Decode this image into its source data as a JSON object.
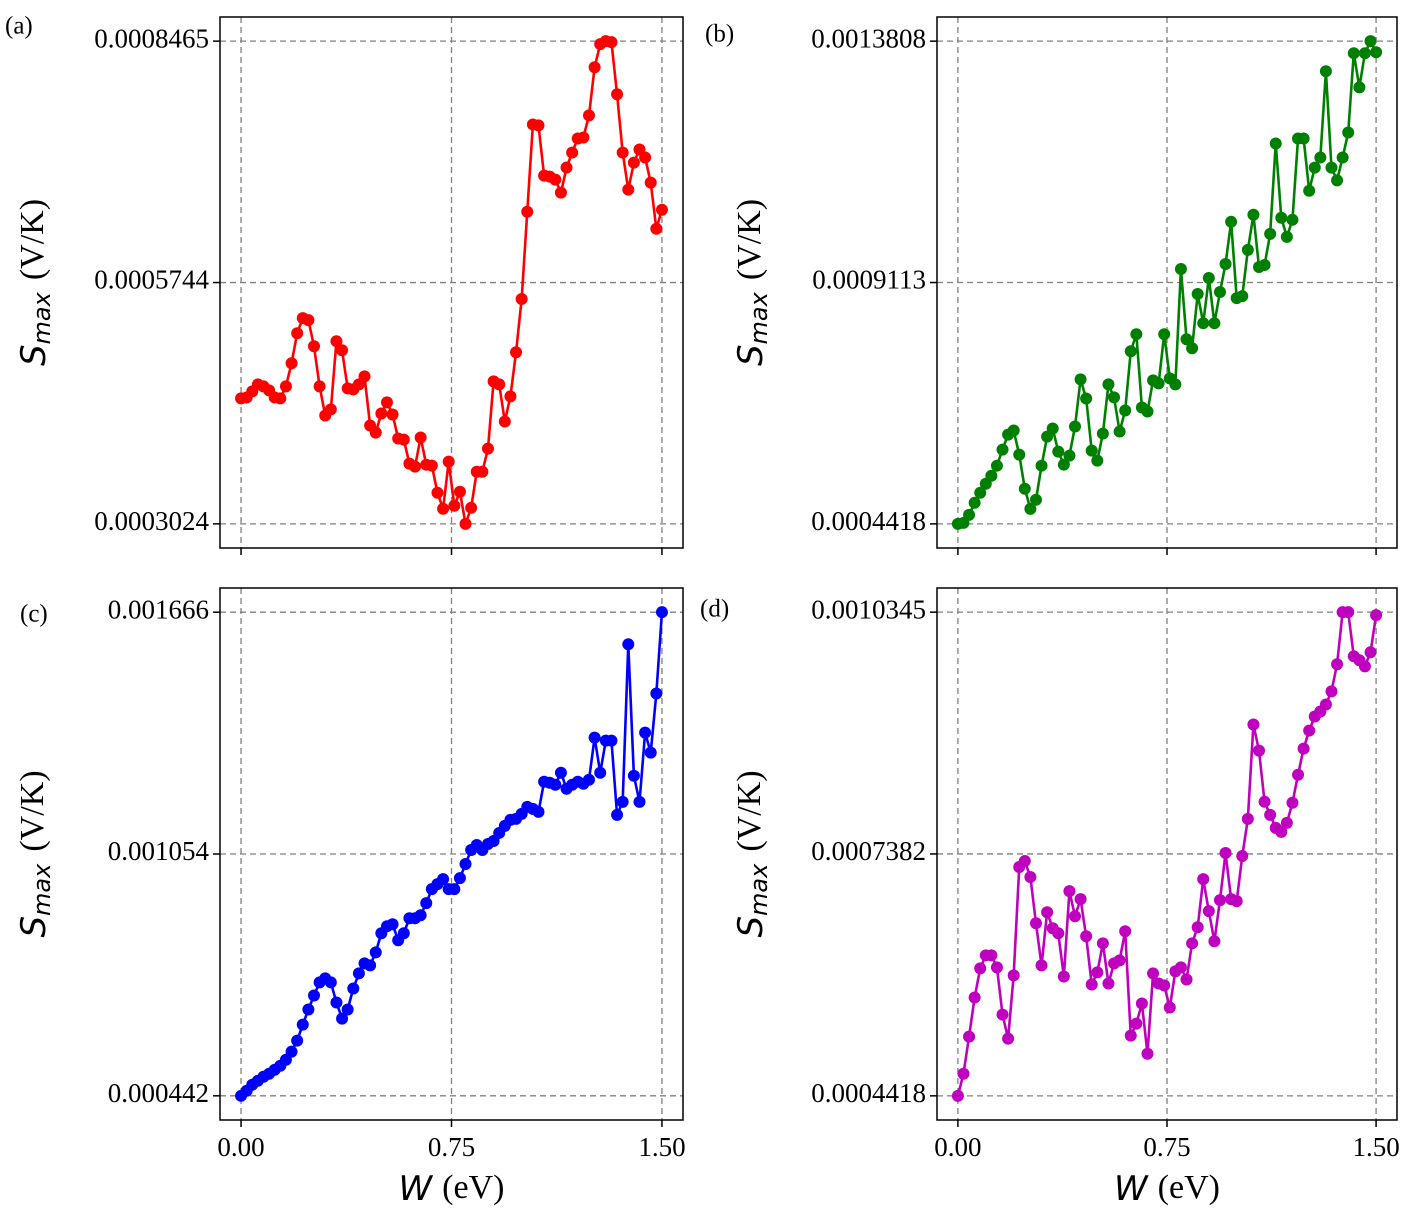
{
  "chart_data": [
    {
      "type": "line",
      "label": "(a)",
      "color": "#ff0000",
      "grid": true,
      "show_xtick_labels": false,
      "ylabel": {
        "symbol": "S",
        "subscript": "max",
        "unit": "(V/K)"
      },
      "xlim": [
        -0.075,
        1.575
      ],
      "xticks": [
        0,
        0.75,
        1.5
      ],
      "ylim": [
        0.0002752,
        0.0008737
      ],
      "yticks": [
        0.0003024,
        0.0005744,
        0.0008465
      ],
      "x": [
        0,
        0.02,
        0.04,
        0.06,
        0.08,
        0.1,
        0.12,
        0.14,
        0.16,
        0.18,
        0.2,
        0.22,
        0.24,
        0.26,
        0.28,
        0.3,
        0.32,
        0.34,
        0.36,
        0.38,
        0.4,
        0.42,
        0.44,
        0.46,
        0.48,
        0.5,
        0.52,
        0.54,
        0.56,
        0.58,
        0.6,
        0.62,
        0.64,
        0.66,
        0.68,
        0.7,
        0.72,
        0.74,
        0.76,
        0.78,
        0.8,
        0.82,
        0.84,
        0.86,
        0.88,
        0.9,
        0.92,
        0.94,
        0.96,
        0.98,
        1,
        1.02,
        1.04,
        1.06,
        1.08,
        1.1,
        1.12,
        1.14,
        1.16,
        1.18,
        1.2,
        1.22,
        1.24,
        1.26,
        1.28,
        1.3,
        1.32,
        1.34,
        1.36,
        1.38,
        1.4,
        1.42,
        1.44,
        1.46,
        1.48,
        1.5
      ],
      "values": [
        0.0004438,
        0.0004449,
        0.0004517,
        0.0004596,
        0.0004574,
        0.0004529,
        0.0004449,
        0.0004438,
        0.0004574,
        0.0004834,
        0.0005173,
        0.0005343,
        0.000532,
        0.0005026,
        0.0004574,
        0.0004246,
        0.0004314,
        0.0005083,
        0.0004981,
        0.0004551,
        0.000454,
        0.0004596,
        0.0004687,
        0.0004133,
        0.0004053,
        0.0004268,
        0.0004393,
        0.0004257,
        0.0003986,
        0.0003974,
        0.0003703,
        0.0003669,
        0.0003997,
        0.0003691,
        0.000368,
        0.0003375,
        0.0003194,
        0.0003725,
        0.0003228,
        0.0003386,
        0.0003024,
        0.0003205,
        0.0003612,
        0.0003612,
        0.0003872,
        0.000463,
        0.0004596,
        0.0004178,
        0.0004461,
        0.0004958,
        0.0005558,
        0.0006542,
        0.0007526,
        0.0007515,
        0.0006949,
        0.0006938,
        0.0006904,
        0.0006757,
        0.000704,
        0.0007209,
        0.0007368,
        0.0007379,
        0.0007628,
        0.0008171,
        0.0008431,
        0.0008465,
        0.0008454,
        0.0007866,
        0.0007209,
        0.0006791,
        0.0007096,
        0.0007243,
        0.0007153,
        0.000687,
        0.000635,
        0.0006565
      ]
    },
    {
      "type": "line",
      "label": "(b)",
      "color": "#008000",
      "grid": true,
      "show_xtick_labels": false,
      "ylabel": {
        "symbol": "S",
        "subscript": "max",
        "unit": "(V/K)"
      },
      "xlim": [
        -0.075,
        1.575
      ],
      "xticks": [
        0,
        0.75,
        1.5
      ],
      "ylim": [
        0.0003949,
        0.0014278
      ],
      "yticks": [
        0.0004418,
        0.0009113,
        0.0013808
      ],
      "x": [
        0,
        0.02,
        0.04,
        0.06,
        0.08,
        0.1,
        0.12,
        0.14,
        0.16,
        0.18,
        0.2,
        0.22,
        0.24,
        0.26,
        0.28,
        0.3,
        0.32,
        0.34,
        0.36,
        0.38,
        0.4,
        0.42,
        0.44,
        0.46,
        0.48,
        0.5,
        0.52,
        0.54,
        0.56,
        0.58,
        0.6,
        0.62,
        0.64,
        0.66,
        0.68,
        0.7,
        0.72,
        0.74,
        0.76,
        0.78,
        0.8,
        0.82,
        0.84,
        0.86,
        0.88,
        0.9,
        0.92,
        0.94,
        0.96,
        0.98,
        1,
        1.02,
        1.04,
        1.06,
        1.08,
        1.1,
        1.12,
        1.14,
        1.16,
        1.18,
        1.2,
        1.22,
        1.24,
        1.26,
        1.28,
        1.3,
        1.32,
        1.34,
        1.36,
        1.38,
        1.4,
        1.42,
        1.44,
        1.46,
        1.48,
        1.5
      ],
      "values": [
        0.0004418,
        0.0004438,
        0.0004594,
        0.0004828,
        0.0005023,
        0.0005199,
        0.0005355,
        0.000555,
        0.0005863,
        0.0006155,
        0.0006234,
        0.0005765,
        0.0005101,
        0.0004711,
        0.0004887,
        0.000555,
        0.0006116,
        0.0006273,
        0.0005824,
        0.000557,
        0.0005746,
        0.0006312,
        0.0007229,
        0.0006858,
        0.0005843,
        0.0005648,
        0.0006175,
        0.0007132,
        0.0006878,
        0.0006214,
        0.0006624,
        0.0007776,
        0.0008108,
        0.0006683,
        0.0006604,
        0.000721,
        0.0007151,
        0.0008108,
        0.0007249,
        0.0007132,
        0.0009377,
        0.000801,
        0.0007834,
        0.0008889,
        0.0008322,
        0.0009201,
        0.0008322,
        0.0008928,
        0.0009474,
        0.0010294,
        0.000881,
        0.0008849,
        0.0009748,
        0.0010431,
        0.0009416,
        0.0009455,
        0.001006,
        0.0011817,
        0.0010372,
        0.0010001,
        0.0010333,
        0.0011914,
        0.0011914,
        0.0010899,
        0.0011348,
        0.0011544,
        0.0013222,
        0.0011348,
        0.0011099,
        0.0011544,
        0.0012032,
        0.0013574,
        0.001291,
        0.0013574,
        0.0013808,
        0.0013593
      ]
    },
    {
      "type": "line",
      "label": "(c)",
      "color": "#0000ff",
      "grid": true,
      "show_xtick_labels": true,
      "ylabel": {
        "symbol": "S",
        "subscript": "max",
        "unit": "(V/K)"
      },
      "xlabel": {
        "symbol": "W",
        "unit": "(eV)"
      },
      "xlim": [
        -0.075,
        1.575
      ],
      "xticks": [
        {
          "value": 0,
          "label": "0.00"
        },
        {
          "value": 0.75,
          "label": "0.75"
        },
        {
          "value": 1.5,
          "label": "1.50"
        }
      ],
      "ylim": [
        0.0003808,
        0.0017272
      ],
      "yticks": [
        0.000442,
        0.001054,
        0.001666
      ],
      "x": [
        0,
        0.02,
        0.04,
        0.06,
        0.08,
        0.1,
        0.12,
        0.14,
        0.16,
        0.18,
        0.2,
        0.22,
        0.24,
        0.26,
        0.28,
        0.3,
        0.32,
        0.34,
        0.36,
        0.38,
        0.4,
        0.42,
        0.44,
        0.46,
        0.48,
        0.5,
        0.52,
        0.54,
        0.56,
        0.58,
        0.6,
        0.62,
        0.64,
        0.66,
        0.68,
        0.7,
        0.72,
        0.74,
        0.76,
        0.78,
        0.8,
        0.82,
        0.84,
        0.86,
        0.88,
        0.9,
        0.92,
        0.94,
        0.96,
        0.98,
        1,
        1.02,
        1.04,
        1.06,
        1.08,
        1.1,
        1.12,
        1.14,
        1.16,
        1.18,
        1.2,
        1.22,
        1.24,
        1.26,
        1.28,
        1.3,
        1.32,
        1.34,
        1.36,
        1.38,
        1.4,
        1.42,
        1.44,
        1.46,
        1.48,
        1.5
      ],
      "values": [
        0.000442,
        0.0004547,
        0.0004699,
        0.0004801,
        0.0004902,
        0.0004979,
        0.000508,
        0.0005182,
        0.0005334,
        0.0005537,
        0.0005817,
        0.0006223,
        0.0006604,
        0.0006959,
        0.000729,
        0.0007391,
        0.000729,
        0.0006782,
        0.0006375,
        0.0006604,
        0.0007137,
        0.0007518,
        0.0007772,
        0.0007721,
        0.0008051,
        0.0008534,
        0.0008712,
        0.0008762,
        0.0008356,
        0.0008534,
        0.0008915,
        0.0008915,
        0.0008991,
        0.0009296,
        0.0009651,
        0.0009778,
        0.0009905,
        0.0009651,
        0.0009651,
        0.000993,
        0.0010286,
        0.0010642,
        0.0010769,
        0.0010642,
        0.0010794,
        0.001087,
        0.0011073,
        0.0011251,
        0.0011403,
        0.0011429,
        0.0011556,
        0.0011733,
        0.0011683,
        0.0011607,
        0.0012368,
        0.0012343,
        0.0012292,
        0.0012597,
        0.0012191,
        0.0012292,
        0.0012368,
        0.0012318,
        0.0012419,
        0.0013486,
        0.0012597,
        0.001341,
        0.001341,
        0.001153,
        0.001186,
        0.0015847,
        0.0012521,
        0.001186,
        0.0013613,
        0.0013105,
        0.0014603,
        0.001666
      ]
    },
    {
      "type": "line",
      "label": "(d)",
      "color": "#bf00bf",
      "grid": true,
      "show_xtick_labels": true,
      "ylabel": {
        "symbol": "S",
        "subscript": "max",
        "unit": "(V/K)"
      },
      "xlabel": {
        "symbol": "W",
        "unit": "(eV)"
      },
      "xlim": [
        -0.075,
        1.575
      ],
      "xticks": [
        {
          "value": 0,
          "label": "0.00"
        },
        {
          "value": 0.75,
          "label": "0.75"
        },
        {
          "value": 1.5,
          "label": "1.50"
        }
      ],
      "ylim": [
        0.0004122,
        0.0010641
      ],
      "yticks": [
        0.0004418,
        0.0007382,
        0.0010345
      ],
      "x": [
        0,
        0.02,
        0.04,
        0.06,
        0.08,
        0.1,
        0.12,
        0.14,
        0.16,
        0.18,
        0.2,
        0.22,
        0.24,
        0.26,
        0.28,
        0.3,
        0.32,
        0.34,
        0.36,
        0.38,
        0.4,
        0.42,
        0.44,
        0.46,
        0.48,
        0.5,
        0.52,
        0.54,
        0.56,
        0.58,
        0.6,
        0.62,
        0.64,
        0.66,
        0.68,
        0.7,
        0.72,
        0.74,
        0.76,
        0.78,
        0.8,
        0.82,
        0.84,
        0.86,
        0.88,
        0.9,
        0.92,
        0.94,
        0.96,
        0.98,
        1,
        1.02,
        1.04,
        1.06,
        1.08,
        1.1,
        1.12,
        1.14,
        1.16,
        1.18,
        1.2,
        1.22,
        1.24,
        1.26,
        1.28,
        1.3,
        1.32,
        1.34,
        1.36,
        1.38,
        1.4,
        1.42,
        1.44,
        1.46,
        1.48,
        1.5
      ],
      "values": [
        0.0004418,
        0.0004689,
        0.0005144,
        0.0005623,
        0.000598,
        0.000614,
        0.000614,
        0.0005992,
        0.0005414,
        0.0005119,
        0.0005894,
        0.0007222,
        0.0007295,
        0.0007099,
        0.0006533,
        0.0006017,
        0.0006668,
        0.0006472,
        0.000641,
        0.0005881,
        0.0006927,
        0.0006619,
        0.0006828,
        0.0006373,
        0.0005783,
        0.0005931,
        0.0006287,
        0.0005795,
        0.0006041,
        0.0006078,
        0.0006435,
        0.0005156,
        0.0005303,
        0.0005549,
        0.0004934,
        0.0005918,
        0.0005795,
        0.0005771,
        0.00055,
        0.0005943,
        0.0005992,
        0.0005844,
        0.0006287,
        0.0006484,
        0.0007074,
        0.0006681,
        0.0006312,
        0.0006816,
        0.0007394,
        0.0006828,
        0.0006804,
        0.0007357,
        0.0007812,
        0.0008968,
        0.0008648,
        0.0008021,
        0.0007861,
        0.0007701,
        0.0007652,
        0.0007763,
        0.0008009,
        0.0008353,
        0.0008673,
        0.0008894,
        0.0009066,
        0.0009128,
        0.0009214,
        0.0009374,
        0.0009706,
        0.0010345,
        0.0010345,
        0.0009804,
        0.0009755,
        0.0009681,
        0.0009853,
        0.0010308
      ]
    }
  ]
}
